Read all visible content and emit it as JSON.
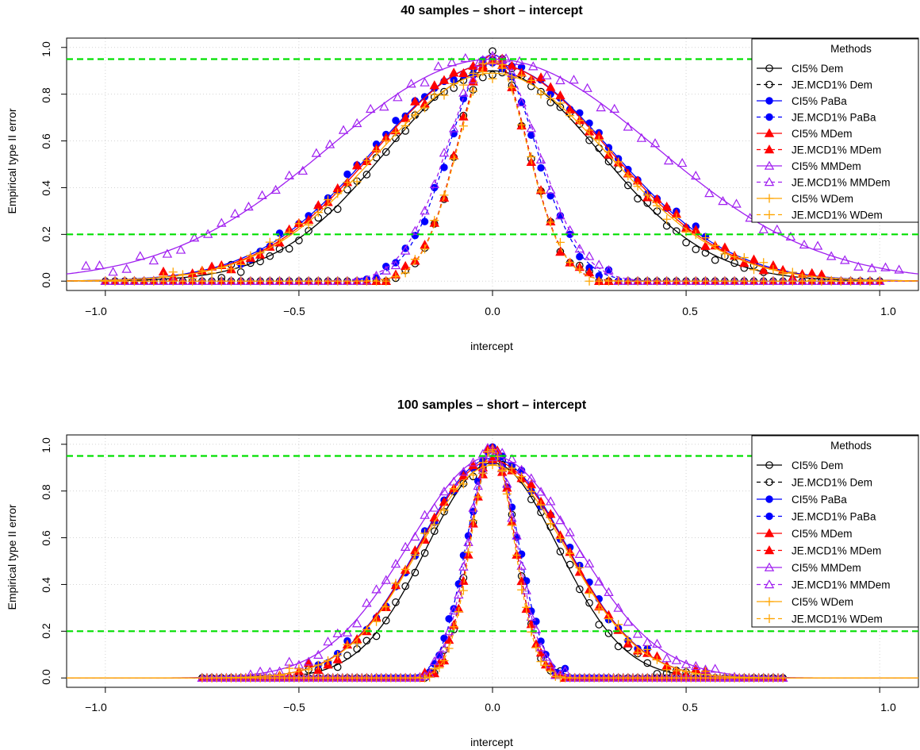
{
  "chart_data": [
    {
      "type": "line",
      "title": "40 samples – short – intercept",
      "xlabel": "intercept",
      "ylabel": "Empirical type II error",
      "xlim": [
        -1.1,
        1.1
      ],
      "ylim": [
        -0.04,
        1.04
      ],
      "xticks": [
        "−1.0",
        "−0.5",
        "0.0",
        "0.5",
        "1.0"
      ],
      "yticks": [
        "0.0",
        "0.2",
        "0.4",
        "0.6",
        "0.8",
        "1.0"
      ],
      "grid": true,
      "reference_lines": [
        0.95,
        0.2
      ],
      "legend": {
        "title": "Methods",
        "position": "top-right"
      },
      "series": [
        {
          "name": "CI5% Dem",
          "color": "#000000",
          "marker": "circle-open",
          "dashed": false,
          "peak": 0.9,
          "sigma": 0.28,
          "range": [
            -0.7,
            0.7
          ],
          "step": 0.025
        },
        {
          "name": "JE.MCD1% Dem",
          "color": "#000000",
          "marker": "circle-open",
          "dashed": true,
          "peak": 0.97,
          "sigma": 0.09,
          "range": [
            -1.0,
            1.0
          ],
          "step": 0.025
        },
        {
          "name": "CI5% PaBa",
          "color": "#0000ff",
          "marker": "circle-filled",
          "dashed": false,
          "peak": 0.93,
          "sigma": 0.305,
          "range": [
            -0.65,
            0.55
          ],
          "step": 0.025
        },
        {
          "name": "JE.MCD1% PaBa",
          "color": "#0000ff",
          "marker": "circle-filled",
          "dashed": true,
          "peak": 0.97,
          "sigma": 0.11,
          "range": [
            -0.35,
            0.35
          ],
          "step": 0.025
        },
        {
          "name": "CI5% MDem",
          "color": "#ff0000",
          "marker": "triangle-filled",
          "dashed": false,
          "peak": 0.93,
          "sigma": 0.3,
          "range": [
            -1.0,
            1.0
          ],
          "step": 0.025
        },
        {
          "name": "JE.MCD1% MDem",
          "color": "#ff0000",
          "marker": "triangle-filled",
          "dashed": true,
          "peak": 0.97,
          "sigma": 0.09,
          "range": [
            -1.0,
            1.0
          ],
          "step": 0.025
        },
        {
          "name": "CI5% MMDem",
          "color": "#a020f0",
          "marker": "triangle-open",
          "dashed": false,
          "peak": 0.95,
          "sigma": 0.42,
          "range": [
            -1.05,
            1.05
          ],
          "step": 0.035
        },
        {
          "name": "JE.MCD1% MMDem",
          "color": "#a020f0",
          "marker": "triangle-open",
          "dashed": true,
          "peak": 0.97,
          "sigma": 0.115,
          "range": [
            -1.0,
            1.0
          ],
          "step": 0.025
        },
        {
          "name": "CI5% WDem",
          "color": "#ffa500",
          "marker": "plus",
          "dashed": false,
          "peak": 0.89,
          "sigma": 0.3,
          "range": [
            -1.0,
            1.0
          ],
          "step": 0.025
        },
        {
          "name": "JE.MCD1% WDem",
          "color": "#ffa500",
          "marker": "plus",
          "dashed": true,
          "peak": 0.95,
          "sigma": 0.09,
          "range": [
            -1.0,
            1.0
          ],
          "step": 0.025
        }
      ]
    },
    {
      "type": "line",
      "title": "100 samples – short – intercept",
      "xlabel": "intercept",
      "ylabel": "Empirical type II error",
      "xlim": [
        -1.1,
        1.1
      ],
      "ylim": [
        -0.04,
        1.04
      ],
      "xticks": [
        "−1.0",
        "−0.5",
        "0.0",
        "0.5",
        "1.0"
      ],
      "yticks": [
        "0.0",
        "0.2",
        "0.4",
        "0.6",
        "0.8",
        "1.0"
      ],
      "grid": true,
      "reference_lines": [
        0.95,
        0.2
      ],
      "legend": {
        "title": "Methods",
        "position": "top-right"
      },
      "series": [
        {
          "name": "CI5% Dem",
          "color": "#000000",
          "marker": "circle-open",
          "dashed": false,
          "peak": 0.92,
          "sigma": 0.17,
          "range": [
            -0.75,
            0.75
          ],
          "step": 0.025
        },
        {
          "name": "JE.MCD1% Dem",
          "color": "#000000",
          "marker": "circle-open",
          "dashed": true,
          "peak": 0.98,
          "sigma": 0.058,
          "range": [
            -0.75,
            0.75
          ],
          "step": 0.025
        },
        {
          "name": "CI5% PaBa",
          "color": "#0000ff",
          "marker": "circle-filled",
          "dashed": false,
          "peak": 0.94,
          "sigma": 0.19,
          "range": [
            -0.45,
            0.4
          ],
          "step": 0.025
        },
        {
          "name": "JE.MCD1% PaBa",
          "color": "#0000ff",
          "marker": "circle-filled",
          "dashed": true,
          "peak": 0.98,
          "sigma": 0.066,
          "range": [
            -0.3,
            0.3
          ],
          "step": 0.0125
        },
        {
          "name": "CI5% MDem",
          "color": "#ff0000",
          "marker": "triangle-filled",
          "dashed": false,
          "peak": 0.93,
          "sigma": 0.19,
          "range": [
            -0.75,
            0.75
          ],
          "step": 0.025
        },
        {
          "name": "JE.MCD1% MDem",
          "color": "#ff0000",
          "marker": "triangle-filled",
          "dashed": true,
          "peak": 0.98,
          "sigma": 0.058,
          "range": [
            -0.75,
            0.75
          ],
          "step": 0.0125
        },
        {
          "name": "CI5% MMDem",
          "color": "#a020f0",
          "marker": "triangle-open",
          "dashed": false,
          "peak": 0.95,
          "sigma": 0.215,
          "range": [
            -0.75,
            0.75
          ],
          "step": 0.025
        },
        {
          "name": "JE.MCD1% MMDem",
          "color": "#a020f0",
          "marker": "triangle-open",
          "dashed": true,
          "peak": 0.98,
          "sigma": 0.062,
          "range": [
            -0.75,
            0.75
          ],
          "step": 0.0125
        },
        {
          "name": "CI5% WDem",
          "color": "#ffa500",
          "marker": "plus",
          "dashed": false,
          "peak": 0.91,
          "sigma": 0.19,
          "range": [
            -0.75,
            0.75
          ],
          "step": 0.025
        },
        {
          "name": "JE.MCD1% WDem",
          "color": "#ffa500",
          "marker": "plus",
          "dashed": true,
          "peak": 0.97,
          "sigma": 0.056,
          "range": [
            -0.75,
            0.75
          ],
          "step": 0.0125
        }
      ]
    }
  ],
  "colors": {
    "reference_line": "#00e000",
    "grid": "#d3d3d3"
  }
}
